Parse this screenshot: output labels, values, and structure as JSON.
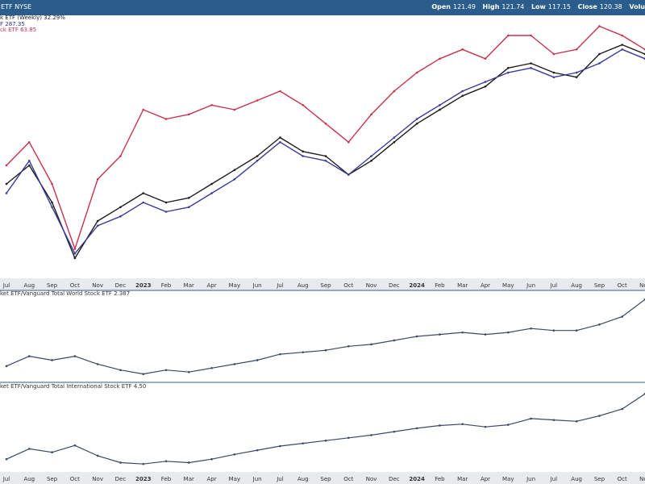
{
  "header": {
    "ticker_partial": "ETF NYSE",
    "ohlc": [
      {
        "label": "Open",
        "value": "121.49"
      },
      {
        "label": "High",
        "value": "121.74"
      },
      {
        "label": "Low",
        "value": "117.15"
      },
      {
        "label": "Close",
        "value": "120.38"
      },
      {
        "label": "Volu",
        "value": ""
      }
    ]
  },
  "legend": {
    "line1": "k ETF (Weekly) 32.29%",
    "line2": "F 287.35",
    "line3": "ck ETF 63.85"
  },
  "panels": {
    "ratio1_label": "ket ETF/Vanguard Total World Stock ETF 2.387",
    "ratio2_label": "ket ETF/Vanguard Total International Stock ETF 4.50"
  },
  "colors": {
    "header_bg": "#2b5d8c",
    "series_black": "#1c1c1c",
    "series_navy": "#3a3a99",
    "series_red": "#c8324c",
    "ratio_line": "#3a4a66",
    "axis_band": "#e8eaee",
    "divider": "#2b5d8c"
  },
  "chart_data": [
    {
      "type": "line",
      "title": "",
      "x": [
        "Jul",
        "Aug",
        "Sep",
        "Oct",
        "Nov",
        "Dec",
        "2023",
        "Feb",
        "Mar",
        "Apr",
        "May",
        "Jun",
        "Jul",
        "Aug",
        "Sep",
        "Oct",
        "Nov",
        "Dec",
        "2024",
        "Feb",
        "Mar",
        "Apr",
        "May",
        "Jun",
        "Jul",
        "Aug",
        "Sep",
        "Oct",
        "Nov"
      ],
      "series": [
        {
          "name": "",
          "color": "#1c1c1c",
          "values": [
            40,
            48,
            32,
            8,
            24,
            30,
            36,
            32,
            34,
            40,
            46,
            52,
            60,
            54,
            52,
            44,
            50,
            58,
            66,
            72,
            78,
            82,
            90,
            92,
            88,
            86,
            96,
            100,
            96
          ]
        },
        {
          "name": "",
          "color": "#3a3a99",
          "values": [
            36,
            50,
            30,
            10,
            22,
            26,
            32,
            28,
            30,
            36,
            42,
            50,
            58,
            52,
            50,
            44,
            52,
            60,
            68,
            74,
            80,
            84,
            88,
            90,
            86,
            88,
            92,
            98,
            94
          ]
        },
        {
          "name": "",
          "color": "#c8324c",
          "values": [
            48,
            58,
            40,
            12,
            42,
            52,
            72,
            68,
            70,
            74,
            72,
            76,
            80,
            74,
            66,
            58,
            70,
            80,
            88,
            94,
            98,
            94,
            104,
            104,
            96,
            98,
            108,
            104,
            98
          ]
        }
      ],
      "ylim": [
        0,
        112
      ],
      "grid": false
    },
    {
      "type": "line",
      "title": "ket ETF/Vanguard Total World Stock ETF 2.387",
      "x": [
        "Jul",
        "Aug",
        "Sep",
        "Oct",
        "Nov",
        "Dec",
        "2023",
        "Feb",
        "Mar",
        "Apr",
        "May",
        "Jun",
        "Jul",
        "Aug",
        "Sep",
        "Oct",
        "Nov",
        "Dec",
        "2024",
        "Feb",
        "Mar",
        "Apr",
        "May",
        "Jun",
        "Jul",
        "Aug",
        "Sep",
        "Oct",
        "Nov"
      ],
      "series": [
        {
          "name": "",
          "color": "#3a4a66",
          "values": [
            2.05,
            2.1,
            2.08,
            2.1,
            2.06,
            2.03,
            2.01,
            2.03,
            2.02,
            2.04,
            2.06,
            2.08,
            2.11,
            2.12,
            2.13,
            2.15,
            2.16,
            2.18,
            2.2,
            2.21,
            2.22,
            2.21,
            2.22,
            2.24,
            2.23,
            2.23,
            2.26,
            2.3,
            2.387
          ]
        }
      ],
      "ylim": [
        1.98,
        2.4
      ],
      "grid": false
    },
    {
      "type": "line",
      "title": "ket ETF/Vanguard Total International Stock ETF 4.50",
      "x": [
        "Jul",
        "Aug",
        "Sep",
        "Oct",
        "Nov",
        "Dec",
        "2023",
        "Feb",
        "Mar",
        "Apr",
        "May",
        "Jun",
        "Jul",
        "Aug",
        "Sep",
        "Oct",
        "Nov",
        "Dec",
        "2024",
        "Feb",
        "Mar",
        "Apr",
        "May",
        "Jun",
        "Jul",
        "Aug",
        "Sep",
        "Oct",
        "Nov"
      ],
      "series": [
        {
          "name": "",
          "color": "#3a4a66",
          "values": [
            3.55,
            3.7,
            3.65,
            3.75,
            3.6,
            3.5,
            3.48,
            3.52,
            3.5,
            3.55,
            3.62,
            3.68,
            3.74,
            3.78,
            3.82,
            3.86,
            3.9,
            3.95,
            4.0,
            4.04,
            4.06,
            4.02,
            4.05,
            4.14,
            4.12,
            4.1,
            4.18,
            4.28,
            4.5
          ]
        }
      ],
      "ylim": [
        3.4,
        4.55
      ],
      "grid": false
    }
  ]
}
